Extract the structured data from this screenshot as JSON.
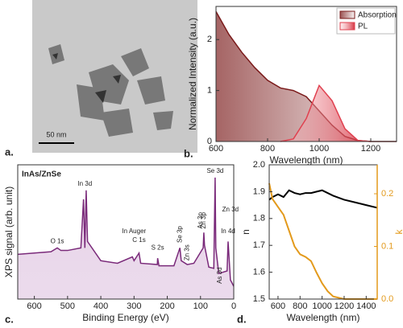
{
  "panel_labels": [
    "a.",
    "b.",
    "c.",
    "d."
  ],
  "image": {
    "scale_bar": "50 nm"
  },
  "chart_data": [
    {
      "type": "area",
      "xlabel": "Wavelength (nm)",
      "ylabel": "Normalized Intensity (a.u.)",
      "x": [
        600,
        650,
        700,
        750,
        800,
        850,
        900,
        950,
        1000,
        1050,
        1100,
        1150,
        1200,
        1250,
        1300
      ],
      "series": [
        {
          "name": "Absorption",
          "color": "#7a1a1a",
          "values": [
            2.55,
            2.1,
            1.75,
            1.45,
            1.2,
            1.05,
            1.0,
            0.88,
            0.6,
            0.32,
            0.1,
            0.02,
            0,
            0,
            0
          ]
        },
        {
          "name": "PL",
          "color": "#e0404f",
          "values": [
            null,
            null,
            null,
            null,
            null,
            0,
            0.05,
            0.45,
            1.1,
            0.8,
            0.25,
            0.02,
            0,
            null,
            null
          ]
        }
      ],
      "xlim": [
        600,
        1300
      ],
      "xticks": [
        600,
        800,
        1000,
        1200
      ],
      "ylim": [
        0,
        2.65
      ],
      "yticks": [
        0,
        1,
        2
      ],
      "legend": "upper right"
    },
    {
      "type": "area",
      "title": "InAs/ZnSe",
      "xlabel": "Binding Energy (eV)",
      "ylabel": "XPS signal (arb. unit)",
      "x": [
        650,
        600,
        550,
        531,
        520,
        500,
        460,
        452,
        448,
        444,
        440,
        400,
        350,
        305,
        300,
        285,
        280,
        230,
        229,
        225,
        180,
        162,
        158,
        140,
        120,
        92,
        90,
        88,
        75,
        60,
        56,
        54,
        45,
        20,
        17,
        10,
        0
      ],
      "series": [
        {
          "name": "XPS",
          "color": "#7a2a7a",
          "values": [
            0.35,
            0.36,
            0.37,
            0.4,
            0.38,
            0.38,
            0.4,
            0.78,
            0.4,
            0.85,
            0.45,
            0.3,
            0.28,
            0.33,
            0.3,
            0.36,
            0.28,
            0.27,
            0.32,
            0.26,
            0.26,
            0.4,
            0.3,
            0.27,
            0.28,
            0.4,
            0.52,
            0.42,
            0.25,
            0.24,
            0.95,
            0.4,
            0.2,
            0.22,
            0.45,
            0.15,
            0.1
          ]
        }
      ],
      "annotations": [
        {
          "text": "O 1s",
          "x": 531,
          "y": 0.45
        },
        {
          "text": "In 3d",
          "x": 448,
          "y": 0.9
        },
        {
          "text": "In Auger",
          "x": 300,
          "y": 0.53
        },
        {
          "text": "C 1s",
          "x": 285,
          "y": 0.46
        },
        {
          "text": "S 2s",
          "x": 229,
          "y": 0.4
        },
        {
          "text": "Se 3p",
          "x": 162,
          "y": 0.44
        },
        {
          "text": "Zn 3s",
          "x": 140,
          "y": 0.3
        },
        {
          "text": "Zn 3p",
          "x": 90,
          "y": 0.55
        },
        {
          "text": "As 3p",
          "x": 100,
          "y": 0.55
        },
        {
          "text": "Se 3d",
          "x": 56,
          "y": 1.0
        },
        {
          "text": "In 4d",
          "x": 17,
          "y": 0.53
        },
        {
          "text": "As 3d",
          "x": 42,
          "y": 0.12
        },
        {
          "text": "Zn 3d",
          "x": 10,
          "y": 0.7
        }
      ],
      "xlim": [
        650,
        0
      ],
      "xticks": [
        600,
        500,
        400,
        300,
        200,
        100,
        0
      ],
      "ylim": [
        0,
        1.05
      ]
    },
    {
      "type": "line",
      "xlabel": "Wavelength (nm)",
      "ylabel": "n",
      "y2label": "k",
      "x": [
        520,
        550,
        600,
        650,
        700,
        750,
        800,
        850,
        900,
        950,
        1000,
        1050,
        1100,
        1200,
        1300,
        1400,
        1500
      ],
      "series": [
        {
          "name": "n",
          "color": "#000000",
          "values": [
            1.87,
            1.88,
            1.89,
            1.88,
            1.905,
            1.895,
            1.89,
            1.895,
            1.895,
            1.9,
            1.905,
            1.895,
            1.885,
            1.87,
            1.86,
            1.85,
            1.84
          ]
        },
        {
          "name": "k",
          "color": "#e39a1c",
          "axis": "y2",
          "values": [
            0.22,
            0.19,
            0.175,
            0.16,
            0.13,
            0.1,
            0.085,
            0.08,
            0.072,
            0.05,
            0.03,
            0.015,
            0.005,
            0,
            0,
            0,
            0
          ]
        }
      ],
      "xlim": [
        520,
        1500
      ],
      "xticks": [
        600,
        800,
        1000,
        1200,
        1400
      ],
      "ylim": [
        1.5,
        2.0
      ],
      "yticks": [
        {
          "value": 1.5,
          "label": "1.5"
        },
        1.6,
        1.7,
        1.8,
        1.9,
        {
          "value": 2.0,
          "label": "2.0"
        }
      ],
      "y2lim": [
        0,
        0.255
      ],
      "y2ticks": [
        {
          "value": 0,
          "label": "0.0"
        },
        0.1,
        0.2
      ]
    }
  ]
}
